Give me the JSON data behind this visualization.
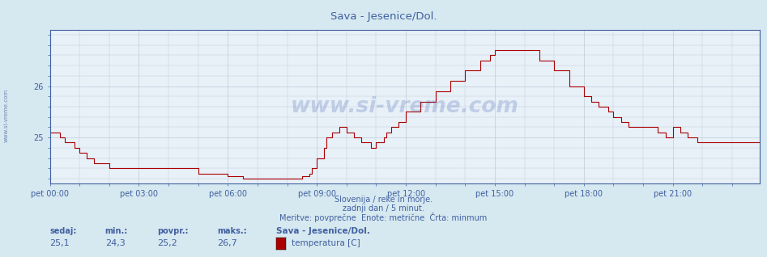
{
  "title": "Sava - Jesenice/Dol.",
  "bg_color": "#d6e8f0",
  "plot_bg_color": "#e8f0f8",
  "grid_color": "#c0ccd8",
  "line_color": "#aa0000",
  "axis_color": "#4060a0",
  "text_color": "#4060a0",
  "ylim": [
    24.1,
    27.1
  ],
  "yticks": [
    25,
    26
  ],
  "x_labels": [
    "pet 00:00",
    "pet 03:00",
    "pet 06:00",
    "pet 09:00",
    "pet 12:00",
    "pet 15:00",
    "pet 18:00",
    "pet 21:00"
  ],
  "x_tick_positions": [
    0,
    36,
    72,
    108,
    144,
    180,
    216,
    252
  ],
  "total_points": 288,
  "footer_line1": "Slovenija / reke in morje.",
  "footer_line2": "zadnji dan / 5 minut.",
  "footer_line3": "Meritve: povprečne  Enote: metrične  Črta: minmum",
  "stats_labels": [
    "sedaj:",
    "min.:",
    "povpr.:",
    "maks.:"
  ],
  "stats_values": [
    "25,1",
    "24,3",
    "25,2",
    "26,7"
  ],
  "legend_label": "Sava - Jesenice/Dol.",
  "legend_series": "temperatura [C]",
  "legend_color": "#aa0000",
  "watermark": "www.si-vreme.com",
  "sidebar_text": "www.si-vreme.com"
}
